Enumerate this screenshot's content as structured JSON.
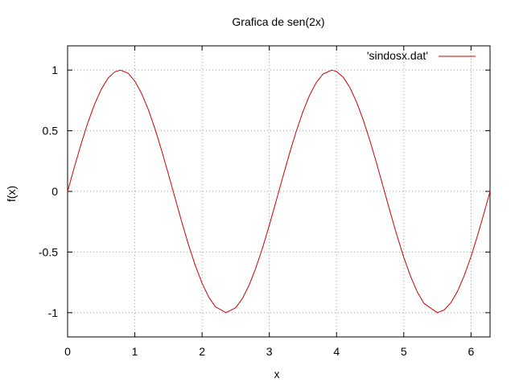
{
  "chart_data": {
    "type": "line",
    "title": "Grafica de sen(2x)",
    "xlabel": "x",
    "ylabel": "f(x)",
    "xlim": [
      0,
      6.2832
    ],
    "ylim": [
      -1.2,
      1.2
    ],
    "x_ticks": [
      0,
      1,
      2,
      3,
      4,
      5,
      6
    ],
    "x_tick_labels": [
      "0",
      "1",
      "2",
      "3",
      "4",
      "5",
      "6"
    ],
    "y_ticks": [
      -1,
      -0.5,
      0,
      0.5,
      1
    ],
    "y_tick_labels": [
      "-1",
      "-0.5",
      "0",
      "0.5",
      "1"
    ],
    "grid": true,
    "legend_position": "top-right",
    "series": [
      {
        "name": "'sindosx.dat'",
        "color": "#cc0000",
        "function": "sin(2x)",
        "x": [
          0,
          0.1,
          0.2,
          0.3,
          0.4,
          0.5,
          0.6,
          0.7,
          0.785,
          0.9,
          1.0,
          1.1,
          1.2,
          1.3,
          1.4,
          1.5,
          1.6,
          1.7,
          1.8,
          1.9,
          2.0,
          2.1,
          2.2,
          2.356,
          2.5,
          2.6,
          2.7,
          2.8,
          2.9,
          3.0,
          3.1,
          3.2,
          3.3,
          3.4,
          3.5,
          3.6,
          3.7,
          3.8,
          3.927,
          4.0,
          4.1,
          4.2,
          4.3,
          4.4,
          4.5,
          4.6,
          4.7,
          4.8,
          4.9,
          5.0,
          5.1,
          5.2,
          5.3,
          5.498,
          5.6,
          5.7,
          5.8,
          5.9,
          6.0,
          6.1,
          6.2,
          6.283
        ],
        "y": [
          0,
          0.199,
          0.389,
          0.565,
          0.717,
          0.841,
          0.932,
          0.985,
          1.0,
          0.974,
          0.909,
          0.808,
          0.675,
          0.516,
          0.335,
          0.141,
          -0.058,
          -0.256,
          -0.443,
          -0.612,
          -0.757,
          -0.872,
          -0.952,
          -1.0,
          -0.959,
          -0.883,
          -0.773,
          -0.631,
          -0.465,
          -0.279,
          -0.083,
          0.117,
          0.312,
          0.494,
          0.657,
          0.794,
          0.899,
          0.968,
          1.0,
          0.989,
          0.941,
          0.855,
          0.734,
          0.584,
          0.412,
          0.223,
          0.025,
          -0.174,
          -0.366,
          -0.544,
          -0.699,
          -0.828,
          -0.923,
          -1.0,
          -0.978,
          -0.918,
          -0.823,
          -0.693,
          -0.537,
          -0.358,
          -0.166,
          0.0
        ]
      }
    ]
  }
}
